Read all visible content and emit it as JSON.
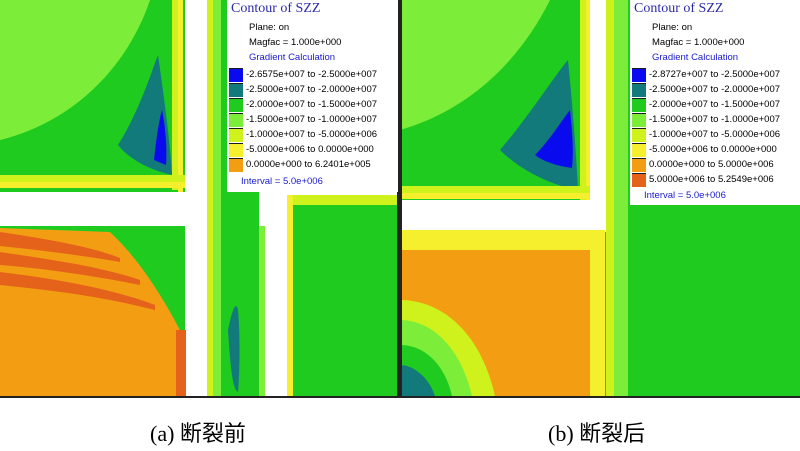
{
  "colors": {
    "blue": "#0a0aee",
    "teal": "#127a7a",
    "green": "#1fcb1f",
    "lightgreen": "#7cee3a",
    "yellowgreen": "#cff21d",
    "yellow": "#f5ef2e",
    "orange": "#f29d12",
    "redorange": "#e5621b",
    "white": "#ffffff"
  },
  "panels": [
    {
      "legend": {
        "title": "Contour of SZZ",
        "plane": "Plane: on",
        "magfac": "Magfac = 1.000e+000",
        "gradient": "Gradient Calculation",
        "ranges": [
          {
            "text": "-2.6575e+007 to -2.5000e+007",
            "color": "#0a0aee"
          },
          {
            "text": "-2.5000e+007 to -2.0000e+007",
            "color": "#127a7a"
          },
          {
            "text": "-2.0000e+007 to -1.5000e+007",
            "color": "#1fcb1f"
          },
          {
            "text": "-1.5000e+007 to -1.0000e+007",
            "color": "#7cee3a"
          },
          {
            "text": "-1.0000e+007 to -5.0000e+006",
            "color": "#cff21d"
          },
          {
            "text": "-5.0000e+006 to  0.0000e+000",
            "color": "#f5ef2e"
          },
          {
            "text": " 0.0000e+000 to  6.2401e+005",
            "color": "#f29d12"
          }
        ],
        "interval": "Interval = 5.0e+006"
      },
      "caption": "(a) 断裂前"
    },
    {
      "legend": {
        "title": "Contour of SZZ",
        "plane": "Plane: on",
        "magfac": "Magfac = 1.000e+000",
        "gradient": "Gradient Calculation",
        "ranges": [
          {
            "text": "-2.8727e+007 to -2.5000e+007",
            "color": "#0a0aee"
          },
          {
            "text": "-2.5000e+007 to -2.0000e+007",
            "color": "#127a7a"
          },
          {
            "text": "-2.0000e+007 to -1.5000e+007",
            "color": "#1fcb1f"
          },
          {
            "text": "-1.5000e+007 to -1.0000e+007",
            "color": "#7cee3a"
          },
          {
            "text": "-1.0000e+007 to -5.0000e+006",
            "color": "#cff21d"
          },
          {
            "text": "-5.0000e+006 to  0.0000e+000",
            "color": "#f5ef2e"
          },
          {
            "text": " 0.0000e+000 to  5.0000e+006",
            "color": "#f29d12"
          },
          {
            "text": " 5.0000e+006 to  5.2549e+006",
            "color": "#e5621b"
          }
        ],
        "interval": "Interval = 5.0e+006"
      },
      "caption": "(b) 断裂后"
    }
  ]
}
